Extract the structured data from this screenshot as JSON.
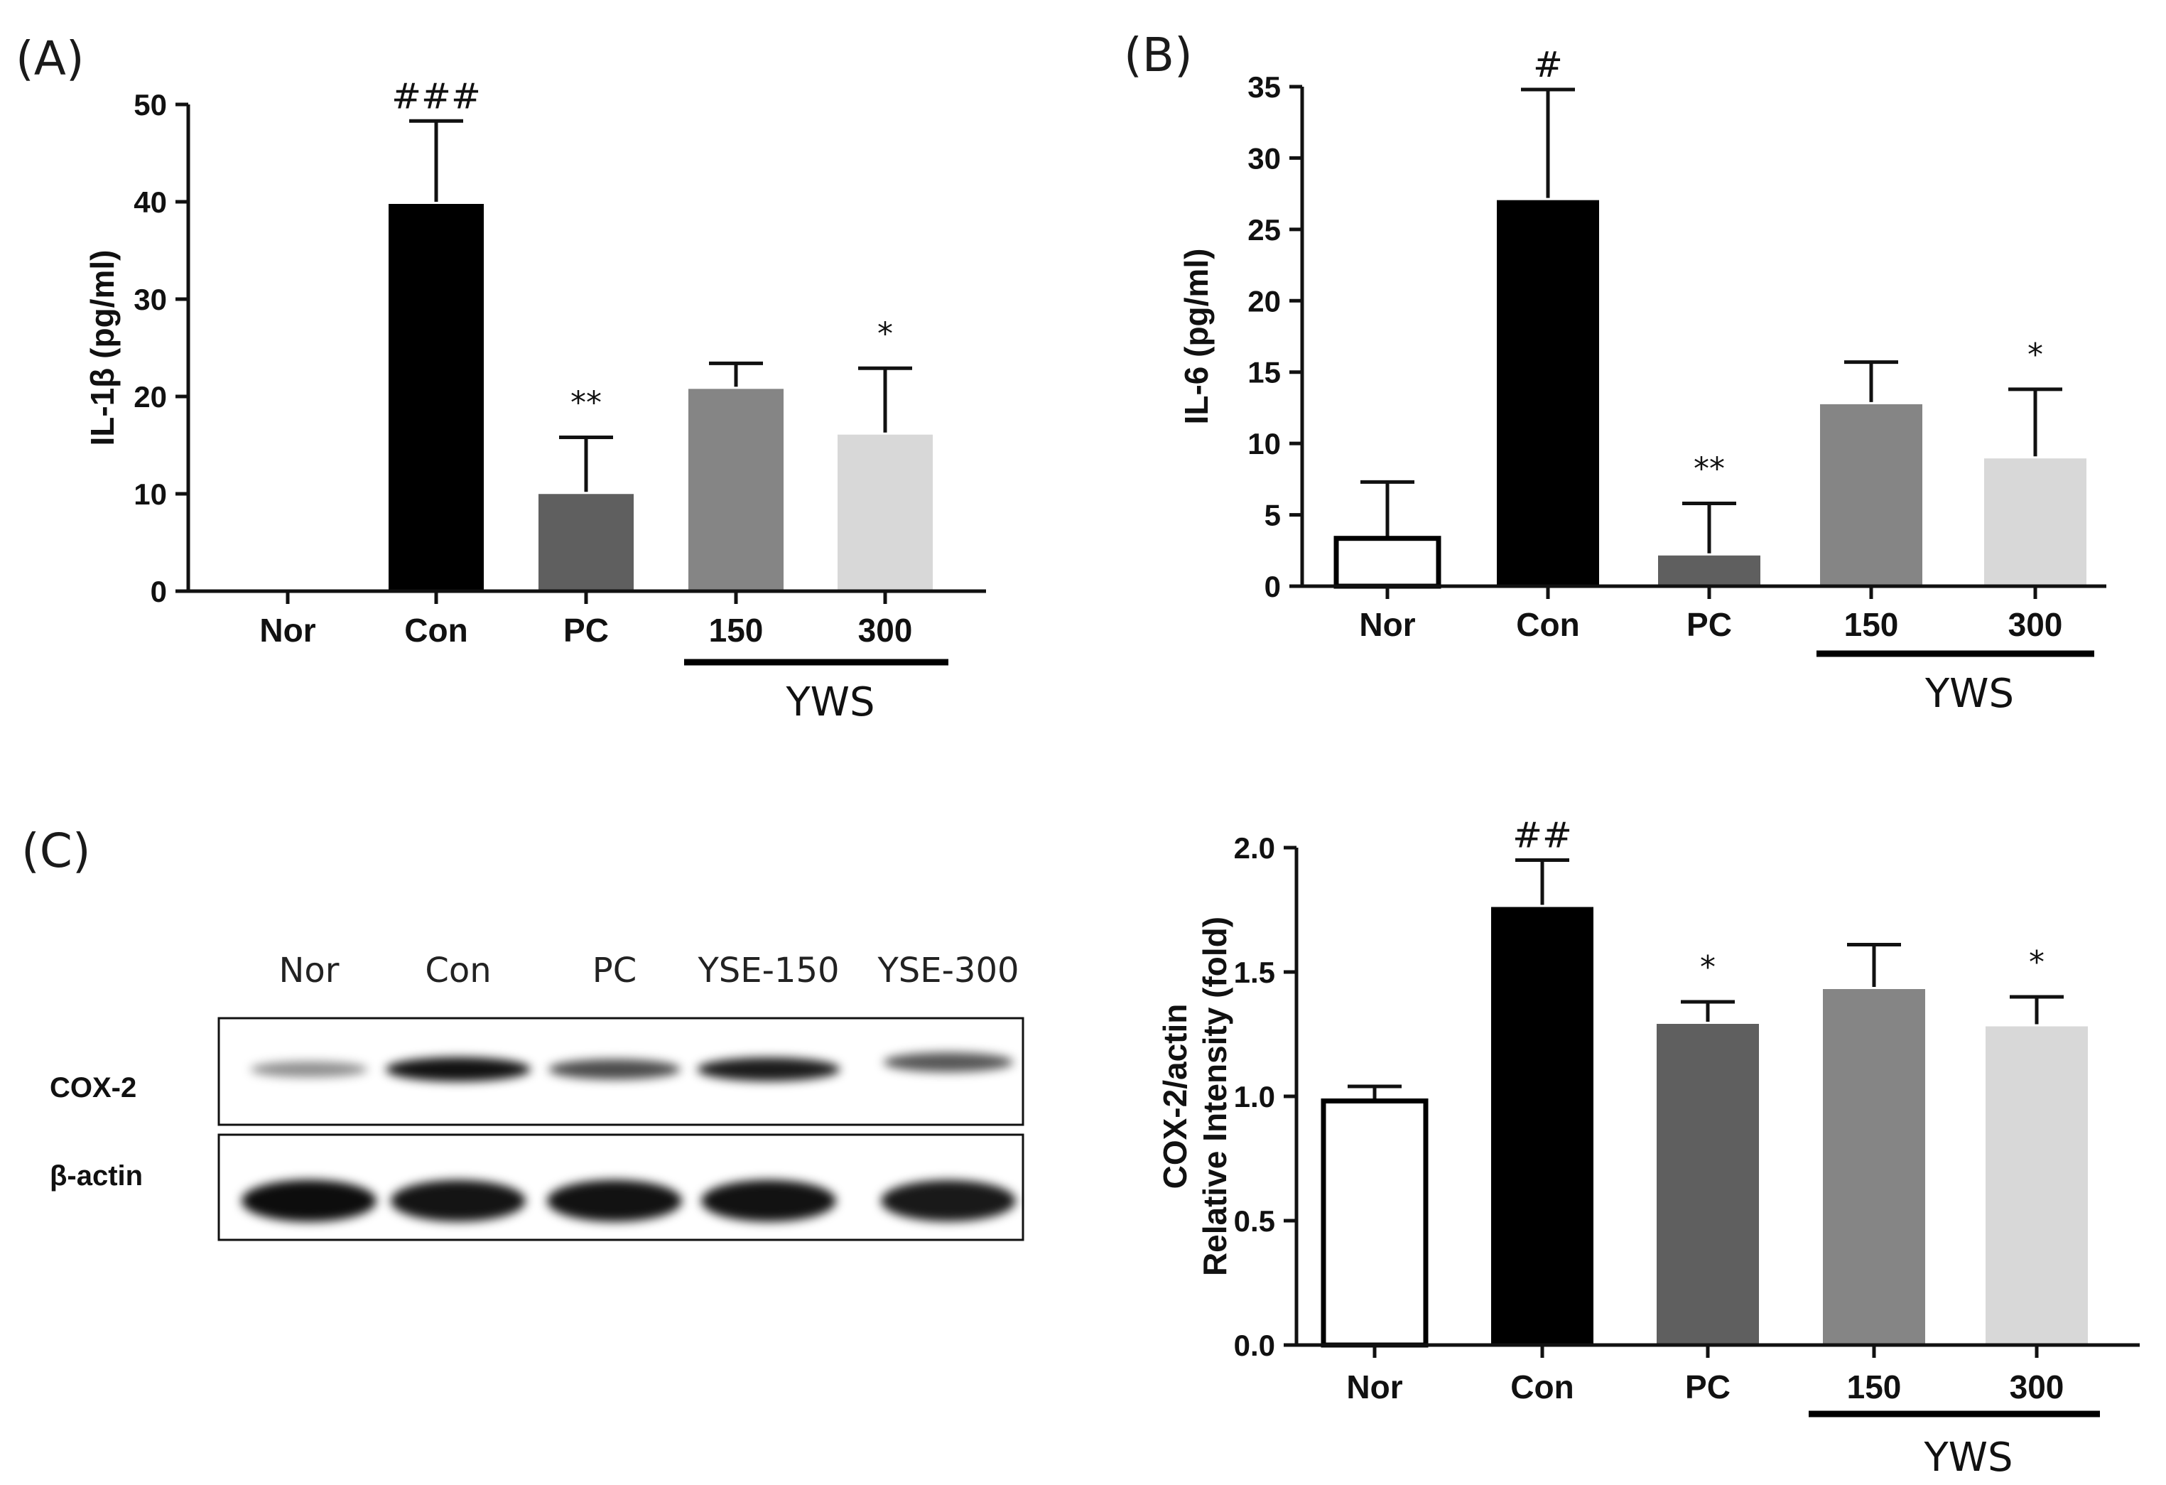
{
  "panels": {
    "A": "(A)",
    "B": "(B)",
    "C": "(C)"
  },
  "bar_colors": [
    "#ffffff",
    "#000000",
    "#5f5f5f",
    "#858585",
    "#d8d8d8"
  ],
  "chart_data": [
    {
      "type": "bar",
      "panel": "A",
      "title": "",
      "xlabel": "",
      "ylabel": "IL-1β (pg/ml)",
      "ylim": [
        0,
        50
      ],
      "yticks": [
        "0",
        "10",
        "20",
        "30",
        "40",
        "50"
      ],
      "categories": [
        "Nor",
        "Con",
        "PC",
        "150",
        "300"
      ],
      "values": [
        0,
        40,
        10.2,
        21,
        16.3
      ],
      "errors": [
        0,
        8.3,
        5.6,
        2.4,
        6.6
      ],
      "annotations": [
        "",
        "###",
        "**",
        "",
        "*"
      ],
      "group_label": "YWS"
    },
    {
      "type": "bar",
      "panel": "B",
      "title": "",
      "xlabel": "",
      "ylabel": "IL-6 (pg/ml)",
      "ylim": [
        0,
        35
      ],
      "yticks": [
        "0",
        "5",
        "10",
        "15",
        "20",
        "25",
        "30",
        "35"
      ],
      "categories": [
        "Nor",
        "Con",
        "PC",
        "150",
        "300"
      ],
      "values": [
        3.5,
        27.2,
        2.3,
        12.9,
        9.1
      ],
      "errors": [
        3.8,
        7.6,
        3.5,
        2.8,
        4.7
      ],
      "annotations": [
        "",
        "#",
        "**",
        "",
        "*"
      ],
      "group_label": "YWS"
    },
    {
      "type": "bar",
      "panel": "C",
      "title": "",
      "xlabel": "",
      "ylabel": [
        "COX-2/actin",
        "Relative Intensity (fold)"
      ],
      "ylim": [
        0,
        2.0
      ],
      "yticks": [
        "0.0",
        "0.5",
        "1.0",
        "1.5",
        "2.0"
      ],
      "categories": [
        "Nor",
        "Con",
        "PC",
        "150",
        "300"
      ],
      "values": [
        0.99,
        1.77,
        1.3,
        1.44,
        1.29
      ],
      "errors": [
        0.05,
        0.18,
        0.08,
        0.17,
        0.11
      ],
      "annotations": [
        "",
        "##",
        "*",
        "",
        "*"
      ],
      "group_label": "YWS"
    }
  ],
  "blot": {
    "lanes": [
      "Nor",
      "Con",
      "PC",
      "YSE-150",
      "YSE-300"
    ],
    "rows": [
      "COX-2",
      "β-actin"
    ],
    "cox2_intensity": [
      0.25,
      0.9,
      0.6,
      0.85,
      0.55
    ],
    "actin_intensity": [
      0.95,
      0.92,
      0.93,
      0.93,
      0.9
    ]
  }
}
